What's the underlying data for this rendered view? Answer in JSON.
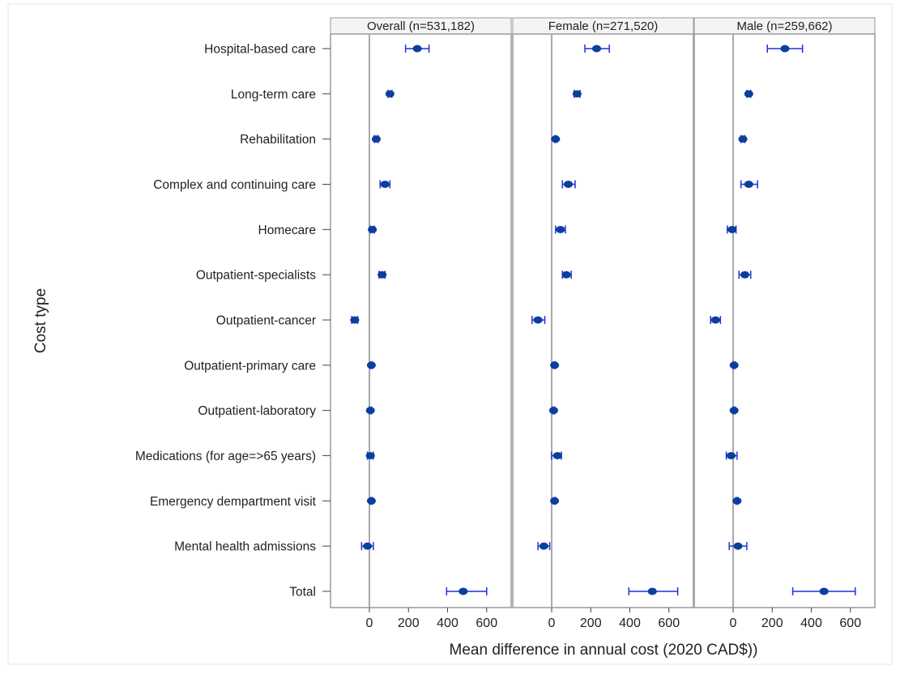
{
  "chart_data": {
    "type": "scatter",
    "subtype": "forest-plot-with-error-bars",
    "title": "",
    "xlabel": "Mean difference in annual cost (2020 CAD$))",
    "ylabel": "Cost type",
    "xlim": [
      -200,
      700
    ],
    "xticks": [
      0,
      200,
      400,
      600
    ],
    "xtick_labels": [
      "0",
      "200",
      "400",
      "600"
    ],
    "reference_line_x": 0,
    "grid": false,
    "legend": "none",
    "categories": [
      "Hospital-based care",
      "Long-term care",
      "Rehabilitation",
      "Complex and continuing care",
      "Homecare",
      "Outpatient-specialists",
      "Outpatient-cancer",
      "Outpatient-primary care",
      "Outpatient-laboratory",
      "Medications (for age=>65 years)",
      "Emergency dempartment visit",
      "Mental health admissions",
      "Total"
    ],
    "panels": [
      {
        "label": "Overall (n=531,182)",
        "estimates": [
          245,
          105,
          35,
          80,
          15,
          65,
          -75,
          10,
          5,
          5,
          10,
          -10,
          480
        ],
        "lower": [
          185,
          95,
          25,
          55,
          5,
          50,
          -90,
          5,
          0,
          -10,
          5,
          -40,
          395
        ],
        "upper": [
          305,
          115,
          45,
          105,
          25,
          80,
          -60,
          15,
          10,
          20,
          15,
          20,
          600
        ]
      },
      {
        "label": "Female (n=271,520)",
        "estimates": [
          230,
          130,
          20,
          85,
          45,
          75,
          -70,
          15,
          10,
          30,
          15,
          -40,
          515
        ],
        "lower": [
          170,
          115,
          15,
          55,
          20,
          55,
          -100,
          10,
          5,
          0,
          10,
          -70,
          395
        ],
        "upper": [
          295,
          145,
          25,
          120,
          70,
          100,
          -35,
          20,
          15,
          50,
          20,
          -10,
          645
        ]
      },
      {
        "label": "Male (n=259,662)",
        "estimates": [
          265,
          80,
          50,
          80,
          -5,
          60,
          -90,
          5,
          5,
          -10,
          20,
          25,
          465
        ],
        "lower": [
          175,
          70,
          40,
          40,
          -30,
          30,
          -115,
          0,
          0,
          -35,
          15,
          -20,
          305
        ],
        "upper": [
          355,
          90,
          60,
          125,
          15,
          90,
          -65,
          10,
          10,
          20,
          25,
          70,
          625
        ]
      }
    ],
    "colors": {
      "point": "#0b3f9c",
      "error_bar": "#1f2fe0",
      "reference_line": "#a9a9a9",
      "panel_border": "#9a9a9a",
      "panel_header_bg": "#f4f4f4"
    }
  }
}
